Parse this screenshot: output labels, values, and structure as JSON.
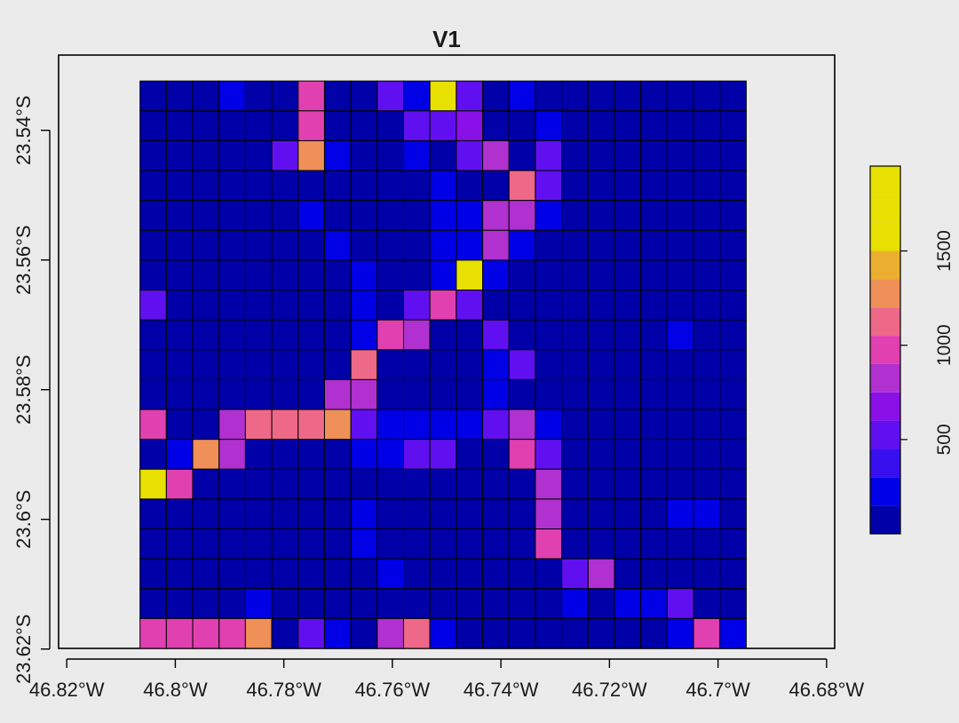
{
  "chart_data": {
    "type": "heatmap",
    "title": "V1",
    "xlabel": "",
    "ylabel": "",
    "x_ticks": [
      {
        "value": -46.82,
        "label": "46.82°W"
      },
      {
        "value": -46.8,
        "label": "46.8°W"
      },
      {
        "value": -46.78,
        "label": "46.78°W"
      },
      {
        "value": -46.76,
        "label": "46.76°W"
      },
      {
        "value": -46.74,
        "label": "46.74°W"
      },
      {
        "value": -46.72,
        "label": "46.72°W"
      },
      {
        "value": -46.7,
        "label": "46.7°W"
      },
      {
        "value": -46.68,
        "label": "46.68°W"
      }
    ],
    "y_ticks": [
      {
        "value": -23.54,
        "label": "23.54°S"
      },
      {
        "value": -23.56,
        "label": "23.56°S"
      },
      {
        "value": -23.58,
        "label": "23.58°S"
      },
      {
        "value": -23.6,
        "label": "23.6°S"
      },
      {
        "value": -23.62,
        "label": "23.62°S"
      }
    ],
    "xlim": [
      -46.8215,
      -46.6785
    ],
    "ylim": [
      -23.6199,
      -23.5284
    ],
    "grid_extent": {
      "x": [
        -46.8065,
        -46.6948
      ],
      "y": [
        -23.6199,
        -23.5324
      ]
    },
    "legend": {
      "placement": "right",
      "ticks": [
        500,
        1000,
        1500
      ],
      "range": [
        0,
        1950
      ],
      "breaks": [
        0,
        150,
        300,
        450,
        600,
        750,
        900,
        1050,
        1200,
        1350,
        1500,
        1650,
        1800,
        1950
      ],
      "colors": [
        "#0000a8",
        "#0000e6",
        "#3810f0",
        "#6010f0",
        "#8a10e8",
        "#b030d0",
        "#e040b0",
        "#ee6888",
        "#ee9058",
        "#ecb030",
        "#e8e000",
        "#e8e000",
        "#e8e000"
      ]
    },
    "rows": 19,
    "cols": 23,
    "values": [
      [
        60,
        60,
        60,
        250,
        60,
        60,
        950,
        60,
        60,
        550,
        250,
        1950,
        550,
        60,
        250,
        60,
        60,
        60,
        60,
        60,
        60,
        60,
        60
      ],
      [
        60,
        60,
        60,
        60,
        60,
        60,
        950,
        60,
        60,
        60,
        550,
        550,
        700,
        60,
        60,
        250,
        60,
        60,
        60,
        60,
        60,
        60,
        60
      ],
      [
        60,
        60,
        60,
        60,
        60,
        550,
        1250,
        250,
        60,
        60,
        250,
        60,
        550,
        800,
        60,
        550,
        60,
        60,
        60,
        60,
        60,
        60,
        60
      ],
      [
        60,
        60,
        60,
        60,
        60,
        60,
        60,
        60,
        60,
        60,
        60,
        250,
        60,
        60,
        1100,
        550,
        60,
        60,
        60,
        60,
        60,
        60,
        60
      ],
      [
        60,
        60,
        60,
        60,
        60,
        60,
        250,
        60,
        60,
        60,
        60,
        250,
        250,
        800,
        800,
        250,
        60,
        60,
        60,
        60,
        60,
        60,
        60
      ],
      [
        60,
        60,
        60,
        60,
        60,
        60,
        60,
        250,
        60,
        60,
        60,
        250,
        250,
        800,
        250,
        60,
        60,
        60,
        60,
        60,
        60,
        60,
        60
      ],
      [
        60,
        60,
        60,
        60,
        60,
        60,
        60,
        60,
        250,
        60,
        60,
        250,
        1550,
        250,
        60,
        60,
        60,
        60,
        60,
        60,
        60,
        60,
        60
      ],
      [
        550,
        60,
        60,
        60,
        60,
        60,
        60,
        60,
        250,
        60,
        550,
        950,
        550,
        60,
        60,
        60,
        60,
        60,
        60,
        60,
        60,
        60,
        60
      ],
      [
        60,
        60,
        60,
        60,
        60,
        60,
        60,
        60,
        250,
        950,
        800,
        60,
        60,
        550,
        60,
        60,
        60,
        60,
        60,
        60,
        250,
        60,
        60
      ],
      [
        60,
        60,
        60,
        60,
        60,
        60,
        60,
        60,
        1100,
        60,
        60,
        60,
        60,
        250,
        550,
        60,
        60,
        60,
        60,
        60,
        60,
        60,
        60
      ],
      [
        60,
        60,
        60,
        60,
        60,
        60,
        60,
        800,
        800,
        60,
        60,
        60,
        60,
        250,
        60,
        60,
        60,
        60,
        60,
        60,
        60,
        60,
        60
      ],
      [
        950,
        60,
        60,
        800,
        1100,
        1100,
        1100,
        1250,
        550,
        250,
        250,
        250,
        250,
        550,
        800,
        250,
        60,
        60,
        60,
        60,
        60,
        60,
        60
      ],
      [
        60,
        250,
        1300,
        800,
        60,
        60,
        60,
        60,
        250,
        250,
        550,
        550,
        60,
        60,
        950,
        550,
        60,
        60,
        60,
        60,
        60,
        60,
        60
      ],
      [
        1550,
        950,
        60,
        60,
        60,
        60,
        60,
        60,
        60,
        60,
        60,
        60,
        60,
        60,
        60,
        800,
        60,
        60,
        60,
        60,
        60,
        60,
        60
      ],
      [
        60,
        60,
        60,
        60,
        60,
        60,
        60,
        60,
        250,
        60,
        60,
        60,
        60,
        60,
        60,
        800,
        60,
        60,
        60,
        60,
        250,
        250,
        60
      ],
      [
        60,
        60,
        60,
        60,
        60,
        60,
        60,
        60,
        250,
        60,
        60,
        60,
        60,
        60,
        60,
        950,
        60,
        60,
        60,
        60,
        60,
        60,
        60
      ],
      [
        60,
        60,
        60,
        60,
        60,
        60,
        60,
        60,
        60,
        250,
        60,
        60,
        60,
        60,
        60,
        60,
        550,
        800,
        60,
        60,
        60,
        60,
        60
      ],
      [
        60,
        60,
        60,
        60,
        250,
        60,
        60,
        60,
        60,
        60,
        60,
        60,
        60,
        60,
        60,
        60,
        250,
        60,
        250,
        250,
        550,
        60,
        60
      ],
      [
        950,
        950,
        950,
        950,
        1300,
        60,
        550,
        250,
        60,
        800,
        1100,
        250,
        60,
        60,
        60,
        60,
        60,
        60,
        60,
        60,
        250,
        950,
        250
      ]
    ]
  }
}
